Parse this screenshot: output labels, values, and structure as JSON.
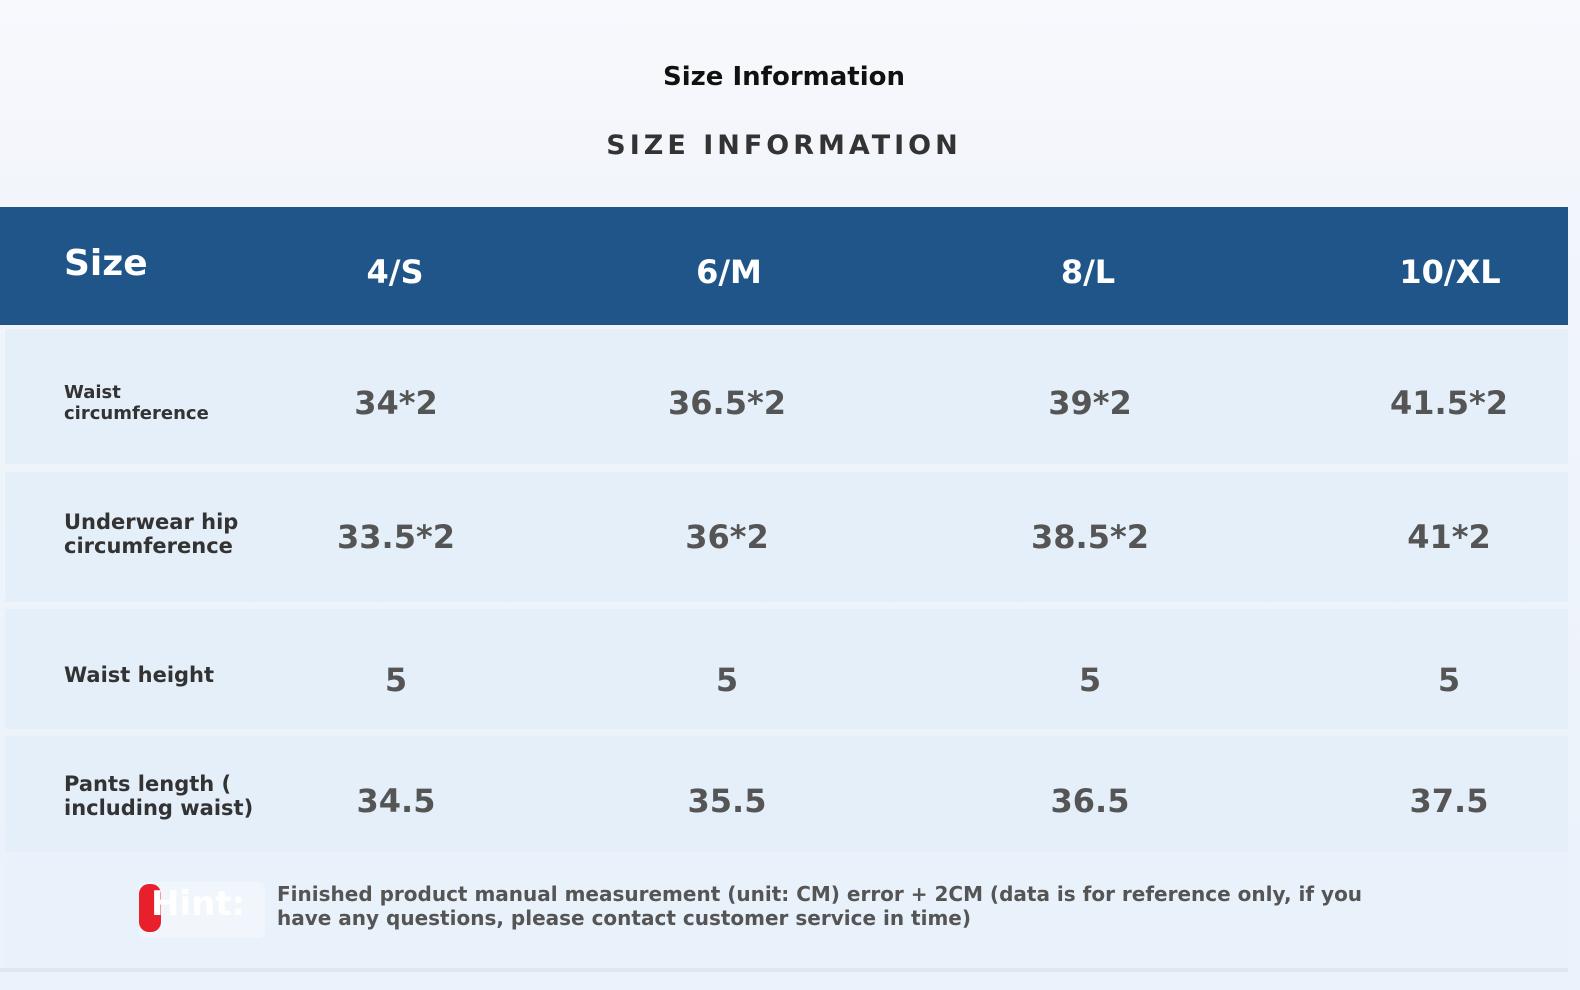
{
  "title": "Size Information",
  "subtitle": "SIZE INFORMATION",
  "header": {
    "label": "Size",
    "columns": [
      "4/S",
      "6/M",
      "8/L",
      "10/XL"
    ]
  },
  "rows": [
    {
      "label": "Waist circumference",
      "values": [
        "34*2",
        "36.5*2",
        "39*2",
        "41.5*2"
      ]
    },
    {
      "label": "Underwear hip circumference",
      "values": [
        "33.5*2",
        "36*2",
        "38.5*2",
        "41*2"
      ]
    },
    {
      "label": "Waist height",
      "values": [
        "5",
        "5",
        "5",
        "5"
      ]
    },
    {
      "label": "Pants length ( including waist)",
      "values": [
        "34.5",
        "35.5",
        "36.5",
        "37.5"
      ]
    }
  ],
  "footer": {
    "hint_label": "Hint:",
    "note": "Finished product manual measurement (unit: CM) error + 2CM (data is for reference only, if you have any questions, please contact customer service in time)"
  },
  "colors": {
    "header_bg": "#1f5589",
    "hint_accent": "#e8202c"
  }
}
